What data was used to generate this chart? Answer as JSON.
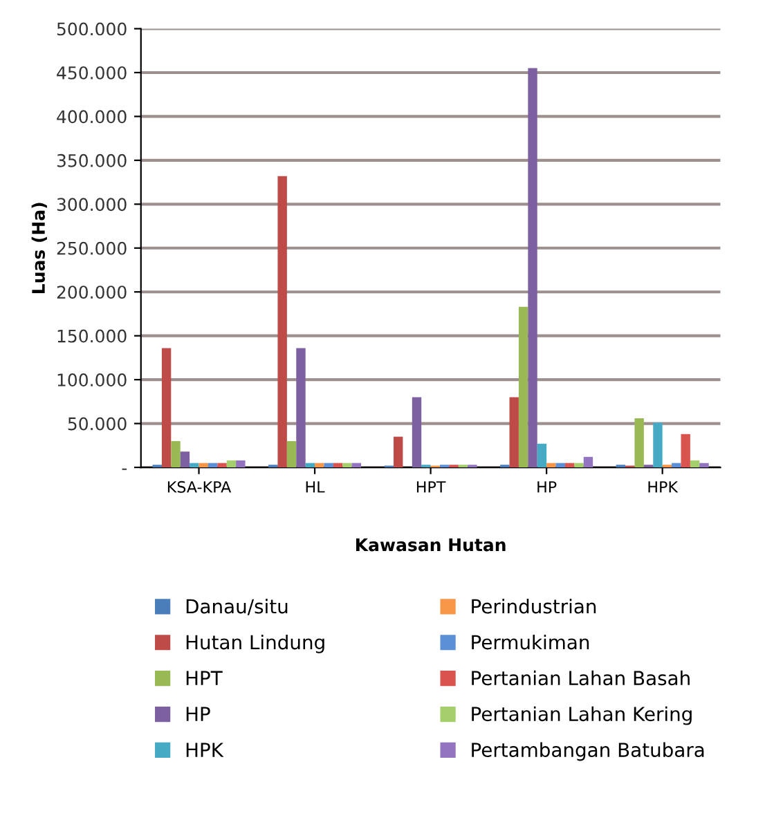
{
  "chart_data": {
    "type": "bar",
    "xlabel": "Kawasan Hutan",
    "ylabel": "Luas (Ha)",
    "categories": [
      "KSA-KPA",
      "HL",
      "HPT",
      "HP",
      "HPK"
    ],
    "series": [
      {
        "name": "Danau/situ",
        "color": "#4a7ebb",
        "values": [
          3000,
          3000,
          2000,
          3000,
          3000
        ]
      },
      {
        "name": "Hutan Lindung",
        "color": "#be4b48",
        "values": [
          136000,
          332000,
          35000,
          80000,
          2000
        ]
      },
      {
        "name": "HPT",
        "color": "#98b954",
        "values": [
          30000,
          30000,
          null,
          183000,
          56000
        ]
      },
      {
        "name": "HP",
        "color": "#7d60a0",
        "values": [
          18000,
          136000,
          80000,
          455000,
          3000
        ]
      },
      {
        "name": "HPK",
        "color": "#46aac5",
        "values": [
          5000,
          5000,
          3000,
          27000,
          51000
        ]
      },
      {
        "name": "Perindustrian",
        "color": "#f79646",
        "values": [
          5000,
          5000,
          2000,
          5000,
          3000
        ]
      },
      {
        "name": "Permukiman",
        "color": "#5b8fd6",
        "values": [
          5000,
          5000,
          3000,
          5000,
          5000
        ]
      },
      {
        "name": "Pertanian Lahan Basah",
        "color": "#d9534f",
        "values": [
          5000,
          5000,
          3000,
          5000,
          38000
        ]
      },
      {
        "name": "Pertanian Lahan Kering",
        "color": "#a5cf6b",
        "values": [
          8000,
          5000,
          3000,
          5000,
          8000
        ]
      },
      {
        "name": "Pertambangan Batubara",
        "color": "#9374c0",
        "values": [
          8000,
          5000,
          3000,
          12000,
          5000
        ]
      }
    ],
    "ylim": [
      0,
      500000
    ],
    "yticks": [
      {
        "value": 0,
        "label": "-"
      },
      {
        "value": 50000,
        "label": "50.000"
      },
      {
        "value": 100000,
        "label": "100.000"
      },
      {
        "value": 150000,
        "label": "150.000"
      },
      {
        "value": 200000,
        "label": "200.000"
      },
      {
        "value": 250000,
        "label": "250.000"
      },
      {
        "value": 300000,
        "label": "300.000"
      },
      {
        "value": 350000,
        "label": "350.000"
      },
      {
        "value": 400000,
        "label": "400.000"
      },
      {
        "value": 450000,
        "label": "450.000"
      },
      {
        "value": 500000,
        "label": "500.000"
      }
    ],
    "grid": "y",
    "legend": "bottom"
  }
}
